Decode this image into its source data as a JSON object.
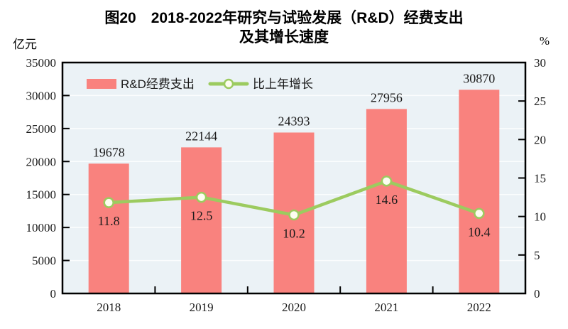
{
  "chart_data": {
    "type": "bar+line",
    "title": "图20　2018-2022年研究与试验发展（R&D）经费支出及其增长速度",
    "title_line1": "图20　2018-2022年研究与试验发展（R&D）经费支出",
    "title_line2": "及其增长速度",
    "categories": [
      "2018",
      "2019",
      "2020",
      "2021",
      "2022"
    ],
    "series": [
      {
        "name": "R&D经费支出",
        "type": "bar",
        "axis": "left",
        "values": [
          19678,
          22144,
          24393,
          27956,
          30870
        ],
        "color": "#f9827e"
      },
      {
        "name": "比上年增长",
        "type": "line",
        "axis": "right",
        "values": [
          11.8,
          12.5,
          10.2,
          14.6,
          10.4
        ],
        "color": "#9ccb5f",
        "marker_fill": "#fdfdf0"
      }
    ],
    "left_axis": {
      "unit": "亿元",
      "min": 0,
      "max": 35000,
      "step": 5000,
      "ticks": [
        0,
        5000,
        10000,
        15000,
        20000,
        25000,
        30000,
        35000
      ]
    },
    "right_axis": {
      "unit": "%",
      "min": 0,
      "max": 30,
      "step": 5,
      "ticks": [
        0,
        5,
        10,
        15,
        20,
        25,
        30
      ]
    },
    "legend": {
      "position": "top-left-inside"
    },
    "grid": true,
    "plot": {
      "background": "#ebf2f6",
      "grid_color": "#fbfdfe",
      "frame_color": "#000000",
      "text_color": "#1a1a1a"
    }
  }
}
